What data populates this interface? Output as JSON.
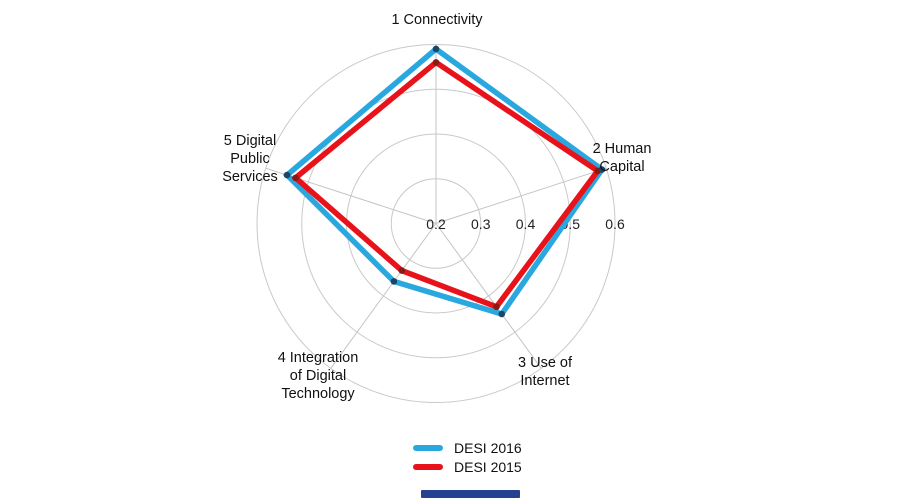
{
  "chart_data": {
    "type": "radar",
    "categories": [
      "1 Connectivity",
      "2 Human Capital",
      "3 Use of Internet",
      "4 Integration of Digital Technology",
      "5 Digital Public Services"
    ],
    "series": [
      {
        "name": "DESI 2016",
        "color": "#29a8e0",
        "marker_color": "#1b4668",
        "values": [
          0.59,
          0.59,
          0.45,
          0.36,
          0.55
        ]
      },
      {
        "name": "DESI 2015",
        "color": "#e8121a",
        "marker_color": "#8c1a13",
        "values": [
          0.56,
          0.58,
          0.43,
          0.33,
          0.53
        ]
      }
    ],
    "radial_axis": {
      "min": 0.2,
      "max": 0.6,
      "step": 0.1,
      "tick_labels": [
        "0.2",
        "0.3",
        "0.4",
        "0.5",
        "0.6"
      ]
    },
    "grid": {
      "shape": "circle",
      "rings": 4,
      "color": "#c9c9c9",
      "spoke_color": "#c4c4c4"
    },
    "legend_position": "bottom-center",
    "title": ""
  },
  "axis_display_labels": {
    "connectivity": "1 Connectivity",
    "human_capital": "2 Human\nCapital",
    "use_of_internet": "3 Use of\nInternet",
    "integration": "4 Integration\nof Digital\nTechnology",
    "digital_public_services": "5 Digital\nPublic\nServices"
  },
  "misc": {
    "bottom_bar_color": "#25418f",
    "tick_text_color": "#222222"
  }
}
